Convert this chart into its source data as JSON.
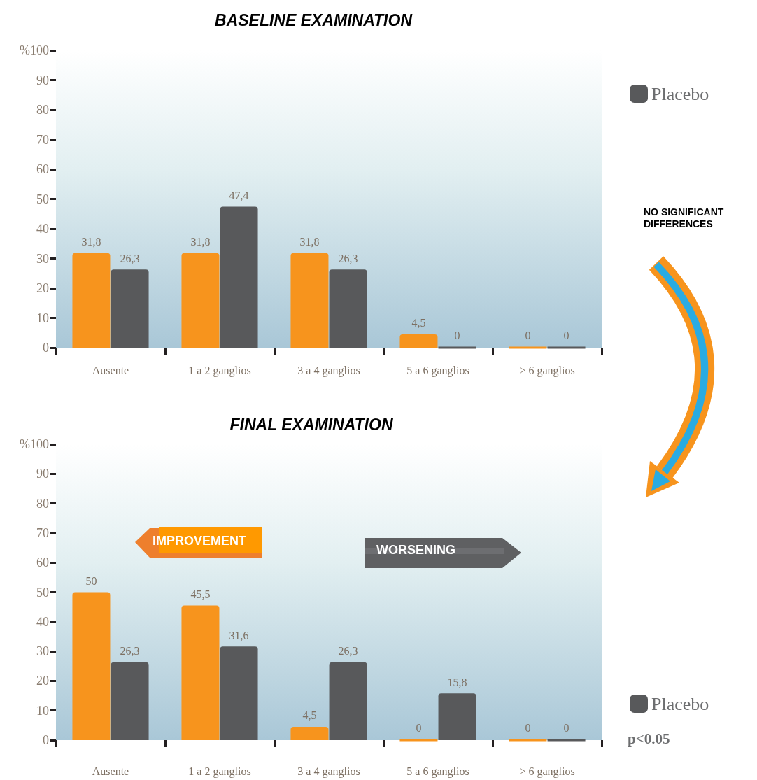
{
  "chart_data": [
    {
      "type": "bar",
      "title": "BASELINE EXAMINATION",
      "categories": [
        "Ausente",
        "1 a 2 ganglios",
        "3 a 4 ganglios",
        "5 a 6 ganglios",
        "> 6 ganglios"
      ],
      "series": [
        {
          "color": "#f7941d",
          "values": [
            31.8,
            31.8,
            31.8,
            4.5,
            0
          ],
          "value_labels": [
            "31,8",
            "31,8",
            "31,8",
            "4,5",
            "0"
          ]
        },
        {
          "name": "Placebo",
          "color": "#58595b",
          "values": [
            26.3,
            47.4,
            26.3,
            0,
            0
          ],
          "value_labels": [
            "26,3",
            "47,4",
            "26,3",
            "0",
            "0"
          ]
        }
      ],
      "ylim": [
        0,
        100
      ],
      "yticks": [
        0,
        10,
        20,
        30,
        40,
        50,
        60,
        70,
        80,
        90,
        {
          "value": 100,
          "label": "%100"
        }
      ],
      "grid": false,
      "legend": "top right",
      "annotations": [
        "NO SIGNIFICANT DIFFERENCES"
      ]
    },
    {
      "type": "bar",
      "title": "FINAL EXAMINATION",
      "categories": [
        "Ausente",
        "1 a 2 ganglios",
        "3 a 4 ganglios",
        "5 a 6 ganglios",
        "> 6 ganglios"
      ],
      "series": [
        {
          "color": "#f7941d",
          "values": [
            50,
            45.5,
            4.5,
            0,
            0
          ],
          "value_labels": [
            "50",
            "45,5",
            "4,5",
            "0",
            "0"
          ]
        },
        {
          "name": "Placebo",
          "color": "#58595b",
          "values": [
            26.3,
            31.6,
            26.3,
            15.8,
            0
          ],
          "value_labels": [
            "26,3",
            "31,6",
            "26,3",
            "15,8",
            "0"
          ]
        }
      ],
      "ylim": [
        0,
        100
      ],
      "yticks": [
        0,
        10,
        20,
        30,
        40,
        50,
        60,
        70,
        80,
        90,
        {
          "value": 100,
          "label": "%100"
        }
      ],
      "grid": false,
      "legend": "bottom right",
      "annotations": [
        "IMPROVEMENT",
        "WORSENING",
        "p<0.05"
      ]
    }
  ]
}
